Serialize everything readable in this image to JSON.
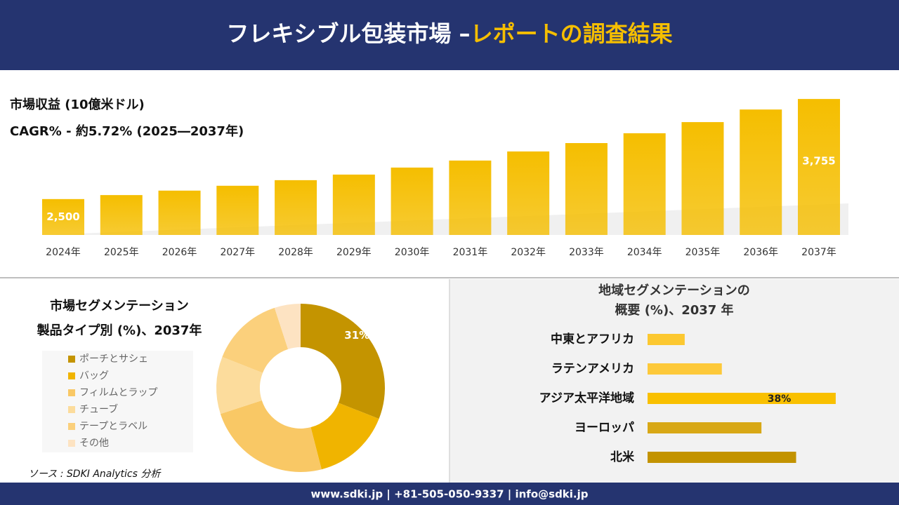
{
  "header": {
    "title": "フレキシブル包装市場 –",
    "title_highlight": "レポートの調査結果"
  },
  "chart_data": [
    {
      "type": "bar",
      "title": "市場収益 (10億米ドル)",
      "subtitle": "CAGR% - 約5.72% (2025―2037年)",
      "categories": [
        "2024年",
        "2025年",
        "2026年",
        "2027年",
        "2028年",
        "2029年",
        "2030年",
        "2031年",
        "2032年",
        "2033年",
        "2034年",
        "2035年",
        "2036年",
        "2037年"
      ],
      "values": [
        2500,
        2550,
        2606,
        2667,
        2737,
        2807,
        2895,
        2983,
        3097,
        3202,
        3325,
        3465,
        3623,
        3755
      ],
      "value_labels": [
        "2,500",
        null,
        null,
        null,
        null,
        null,
        null,
        null,
        null,
        null,
        null,
        null,
        null,
        "3,755"
      ],
      "color": "#f5be00",
      "ylim": [
        2050,
        3800
      ]
    },
    {
      "type": "donut",
      "title": "市場セグメンテーション",
      "subtitle": "製品タイプ別 (%)、2037年",
      "categories": [
        "ポーチとサシェ",
        "バッグ",
        "フィルムとラップ",
        "チューブ",
        "テープとラベル",
        "その他"
      ],
      "values": [
        31,
        15,
        24,
        11,
        14,
        5
      ],
      "value_labels": [
        "31%",
        null,
        null,
        null,
        null,
        null
      ],
      "colors": [
        "#c49400",
        "#f0b400",
        "#f9c865",
        "#fcdc9c",
        "#fbd07c",
        "#fde3c2"
      ]
    },
    {
      "type": "hbar",
      "title": "地域セグメンテーションの",
      "subtitle": "概要 (%)、2037 年",
      "categories": [
        "中東とアフリカ",
        "ラテンアメリカ",
        "アジア太平洋地域",
        "ヨーロッパ",
        "北米"
      ],
      "values": [
        7.5,
        15,
        38,
        23,
        30
      ],
      "value_labels": [
        null,
        null,
        "38%",
        null,
        null
      ],
      "colors": [
        "#fcc830",
        "#fdc93a",
        "#f9c000",
        "#d8a816",
        "#c39300"
      ],
      "xlim": [
        0,
        40
      ]
    }
  ],
  "source": "ソース : SDKI Analytics 分析",
  "footer": "www.sdki.jp | +81-505-050-9337 | info@sdki.jp"
}
